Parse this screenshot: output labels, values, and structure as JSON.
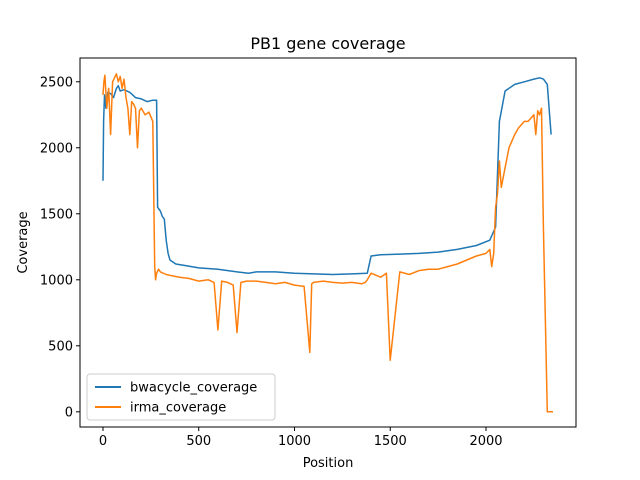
{
  "chart_data": {
    "type": "line",
    "title": "PB1 gene coverage",
    "xlabel": "Position",
    "ylabel": "Coverage",
    "xlim": [
      -120,
      2470
    ],
    "ylim": [
      -115,
      2680
    ],
    "xticks": [
      0,
      500,
      1000,
      1500,
      2000
    ],
    "xtick_labels": [
      "0",
      "500",
      "1000",
      "1500",
      "2000"
    ],
    "yticks": [
      0,
      500,
      1000,
      1500,
      2000,
      2500
    ],
    "ytick_labels": [
      "0",
      "500",
      "1000",
      "1500",
      "2000",
      "2500"
    ],
    "legend_position": "lower-left",
    "grid": false,
    "series": [
      {
        "name": "bwacycle_coverage",
        "color": "#1f77b4",
        "x": [
          0,
          3,
          8,
          15,
          25,
          40,
          55,
          70,
          80,
          90,
          110,
          140,
          170,
          200,
          230,
          260,
          280,
          285,
          290,
          300,
          310,
          320,
          330,
          340,
          350,
          380,
          420,
          500,
          600,
          700,
          760,
          800,
          900,
          1000,
          1100,
          1200,
          1300,
          1380,
          1400,
          1450,
          1550,
          1650,
          1750,
          1850,
          1950,
          2020,
          2050,
          2070,
          2100,
          2150,
          2200,
          2250,
          2280,
          2300,
          2310,
          2320,
          2340
        ],
        "y": [
          1750,
          2200,
          2400,
          2300,
          2420,
          2410,
          2380,
          2450,
          2470,
          2430,
          2440,
          2420,
          2380,
          2370,
          2350,
          2360,
          2360,
          1550,
          1540,
          1520,
          1480,
          1460,
          1300,
          1200,
          1150,
          1120,
          1110,
          1090,
          1080,
          1060,
          1050,
          1060,
          1060,
          1050,
          1045,
          1040,
          1045,
          1050,
          1180,
          1190,
          1195,
          1200,
          1210,
          1230,
          1260,
          1300,
          1400,
          2200,
          2430,
          2480,
          2500,
          2520,
          2530,
          2520,
          2500,
          2480,
          2100
        ]
      },
      {
        "name": "irma_coverage",
        "color": "#ff7f0e",
        "x": [
          0,
          5,
          10,
          20,
          30,
          40,
          50,
          60,
          70,
          80,
          90,
          100,
          110,
          120,
          130,
          140,
          150,
          160,
          170,
          180,
          190,
          200,
          220,
          240,
          260,
          270,
          275,
          280,
          290,
          300,
          330,
          360,
          400,
          450,
          500,
          550,
          580,
          600,
          620,
          650,
          680,
          700,
          720,
          750,
          800,
          850,
          900,
          950,
          1000,
          1050,
          1080,
          1090,
          1100,
          1150,
          1200,
          1250,
          1300,
          1350,
          1370,
          1380,
          1400,
          1450,
          1480,
          1500,
          1550,
          1600,
          1650,
          1700,
          1750,
          1800,
          1850,
          1900,
          1950,
          2000,
          2020,
          2030,
          2040,
          2050,
          2060,
          2070,
          2080,
          2100,
          2120,
          2150,
          2170,
          2200,
          2220,
          2250,
          2260,
          2270,
          2280,
          2290,
          2300,
          2320,
          2350
        ],
        "y": [
          2400,
          2500,
          2550,
          2300,
          2450,
          2100,
          2500,
          2530,
          2560,
          2500,
          2540,
          2450,
          2520,
          2380,
          2300,
          2100,
          2350,
          2330,
          2300,
          2000,
          2280,
          2300,
          2250,
          2270,
          2200,
          1100,
          1000,
          1050,
          1080,
          1060,
          1040,
          1030,
          1020,
          1010,
          990,
          1000,
          980,
          620,
          990,
          980,
          960,
          600,
          980,
          990,
          990,
          980,
          970,
          980,
          960,
          950,
          450,
          970,
          980,
          990,
          980,
          975,
          980,
          970,
          980,
          1000,
          1050,
          1020,
          1050,
          390,
          1060,
          1040,
          1070,
          1080,
          1080,
          1100,
          1120,
          1150,
          1180,
          1200,
          1230,
          1100,
          1200,
          1550,
          1650,
          1900,
          1700,
          1850,
          2000,
          2100,
          2150,
          2200,
          2200,
          2250,
          2100,
          2280,
          2250,
          2300,
          1400,
          0,
          0
        ]
      }
    ]
  }
}
